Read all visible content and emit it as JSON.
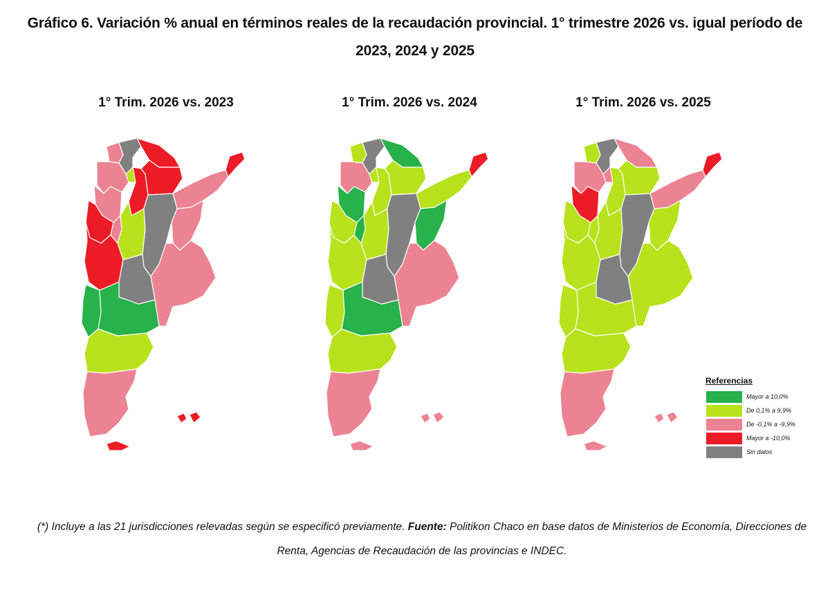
{
  "title": "Gráfico 6. Variación % anual en términos reales de la recaudación provincial. 1° trimestre 2026 vs. igual período de 2023, 2024 y 2025",
  "colors": {
    "green": "#27b24a",
    "lime": "#b8e21c",
    "pink": "#ec8393",
    "red": "#ec1c27",
    "gray": "#808080"
  },
  "maps": [
    {
      "title": "1° Trim. 2026 vs. 2023",
      "regions": {
        "jujuy": "pink",
        "salta": "gray",
        "formosa": "red",
        "chaco": "red",
        "tucuman": "lime",
        "catamarca": "pink",
        "santiago": "red",
        "misiones": "red",
        "corrientes": "pink",
        "larioja": "pink",
        "sanjuan": "red",
        "cordoba": "lime",
        "santafe": "gray",
        "entrerios": "pink",
        "mendoza": "red",
        "sanluis": "pink",
        "buenosaires": "pink",
        "lapampa": "gray",
        "neuquen": "green",
        "rionegro": "green",
        "chubut": "lime",
        "santacruz": "pink",
        "tierradelfuego": "red",
        "malvinas": "red"
      }
    },
    {
      "title": "1° Trim. 2026 vs. 2024",
      "regions": {
        "jujuy": "lime",
        "salta": "gray",
        "formosa": "green",
        "chaco": "lime",
        "tucuman": "lime",
        "catamarca": "pink",
        "santiago": "lime",
        "misiones": "red",
        "corrientes": "lime",
        "larioja": "green",
        "sanjuan": "lime",
        "cordoba": "lime",
        "santafe": "gray",
        "entrerios": "green",
        "mendoza": "lime",
        "sanluis": "green",
        "buenosaires": "pink",
        "lapampa": "gray",
        "neuquen": "lime",
        "rionegro": "green",
        "chubut": "lime",
        "santacruz": "pink",
        "tierradelfuego": "pink",
        "malvinas": "pink"
      }
    },
    {
      "title": "1° Trim. 2026 vs. 2025",
      "regions": {
        "jujuy": "lime",
        "salta": "gray",
        "formosa": "pink",
        "chaco": "lime",
        "tucuman": "pink",
        "catamarca": "pink",
        "santiago": "lime",
        "misiones": "red",
        "corrientes": "pink",
        "larioja": "red",
        "sanjuan": "lime",
        "cordoba": "lime",
        "santafe": "gray",
        "entrerios": "lime",
        "mendoza": "lime",
        "sanluis": "lime",
        "buenosaires": "lime",
        "lapampa": "gray",
        "neuquen": "lime",
        "rionegro": "lime",
        "chubut": "lime",
        "santacruz": "pink",
        "tierradelfuego": "pink",
        "malvinas": "pink"
      }
    }
  ],
  "legend": {
    "title": "Referencias",
    "items": [
      {
        "label": "Mayor a 10,0%",
        "color": "green"
      },
      {
        "label": "De 0,1% a 9,9%",
        "color": "lime"
      },
      {
        "label": "De -0,1% a -9,9%",
        "color": "pink"
      },
      {
        "label": "Mayor a -10,0%",
        "color": "red"
      },
      {
        "label": "Sin datos",
        "color": "gray"
      }
    ]
  },
  "footer": {
    "note": "(*) Incluye a las 21 jurisdicciones relevadas según se especificó previamente.",
    "source_label": "Fuente:",
    "source_text": "Politikon Chaco en base datos de Ministerios de Economía, Direcciones de Renta, Agencias de Recaudación de las provincias e INDEC."
  }
}
